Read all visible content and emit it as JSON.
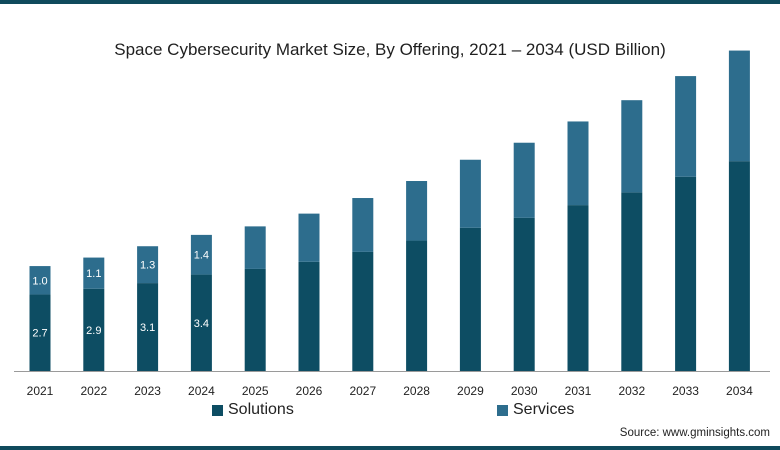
{
  "colors": {
    "solutions": "#0d4d63",
    "services": "#2d6d8d",
    "label": "#ffffff",
    "axis": "#9a9a9a",
    "frame": "#0f4a5c"
  },
  "legend": {
    "solutions": "Solutions",
    "services": "Services"
  },
  "source": "Source: www.gminsights.com",
  "chart_data": {
    "type": "bar",
    "stacked": true,
    "title": "Space Cybersecurity Market Size, By Offering, 2021 – 2034 (USD Billion)",
    "xlabel": "",
    "ylabel": "",
    "categories": [
      "2021",
      "2022",
      "2023",
      "2024",
      "2025",
      "2026",
      "2027",
      "2028",
      "2029",
      "2030",
      "2031",
      "2032",
      "2033",
      "2034"
    ],
    "series": [
      {
        "name": "Solutions",
        "values": [
          2.7,
          2.9,
          3.1,
          3.4,
          3.6,
          3.85,
          4.2,
          4.6,
          5.05,
          5.4,
          5.85,
          6.3,
          6.85,
          7.4
        ]
      },
      {
        "name": "Services",
        "values": [
          1.0,
          1.1,
          1.3,
          1.4,
          1.5,
          1.7,
          1.9,
          2.1,
          2.4,
          2.65,
          2.95,
          3.25,
          3.55,
          3.9
        ]
      }
    ],
    "data_labels": {
      "Solutions": [
        "2.7",
        "2.9",
        "3.1",
        "3.4",
        "",
        "",
        "",
        "",
        "",
        "",
        "",
        "",
        "",
        ""
      ],
      "Services": [
        "1.0",
        "1.1",
        "1.3",
        "1.4",
        "",
        "",
        "",
        "",
        "",
        "",
        "",
        "",
        "",
        ""
      ]
    },
    "ylim": [
      0,
      11.32
    ],
    "grid": false,
    "legend_position": "bottom"
  }
}
